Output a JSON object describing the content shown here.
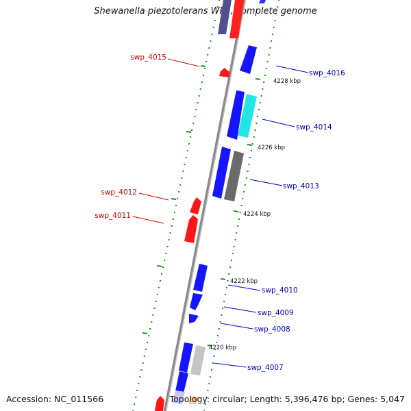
{
  "title": "Shewanella piezotolerans WP3, complete genome",
  "footer": {
    "accession": "Accession: NC_011566",
    "topology": "Topology: circular; Length: 5,396,476 bp; Genes: 5,047"
  },
  "colors": {
    "forward_gene": "#1a1aff",
    "reverse_gene": "#ff1a1a",
    "cyan_gene": "#22e6e6",
    "grey_gene": "#707070",
    "light_grey_gene": "#c4c4c4",
    "backbone": "#888888",
    "ticks": "#1e8a1e",
    "forward_label": "#0000cc",
    "reverse_label": "#cc0000"
  },
  "scale_labels": [
    "4228 kbp",
    "4226 kbp",
    "4224 kbp",
    "4222 kbp",
    "4220 kbp"
  ],
  "gene_labels": {
    "forward": [
      "swp_4016",
      "swp_4014",
      "swp_4013",
      "swp_4010",
      "swp_4009",
      "swp_4008",
      "swp_4007"
    ],
    "reverse": [
      "swp_4015",
      "swp_4012",
      "swp_4011"
    ]
  }
}
